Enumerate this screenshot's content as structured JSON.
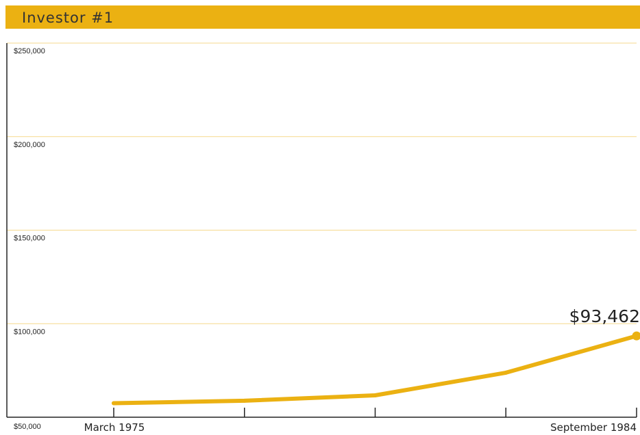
{
  "header": {
    "title": "Investor #1"
  },
  "colors": {
    "accent": "#ebb112",
    "gridline": "#f6d98c",
    "axis": "#222222"
  },
  "chart_data": {
    "type": "line",
    "title": "Investor #1",
    "xlabel": "",
    "ylabel": "",
    "ylim": [
      50000,
      250000
    ],
    "yticks": [
      "$50,000",
      "$100,000",
      "$150,000",
      "$200,000",
      "$250,000"
    ],
    "ytick_values": [
      50000,
      100000,
      150000,
      200000,
      250000
    ],
    "xtick_labels": [
      "March 1975",
      "",
      "",
      "",
      "September 1984"
    ],
    "grid": true,
    "series": [
      {
        "values": [
          57500,
          58800,
          61700,
          73800,
          93462
        ]
      }
    ],
    "end_label": "$93,462"
  }
}
